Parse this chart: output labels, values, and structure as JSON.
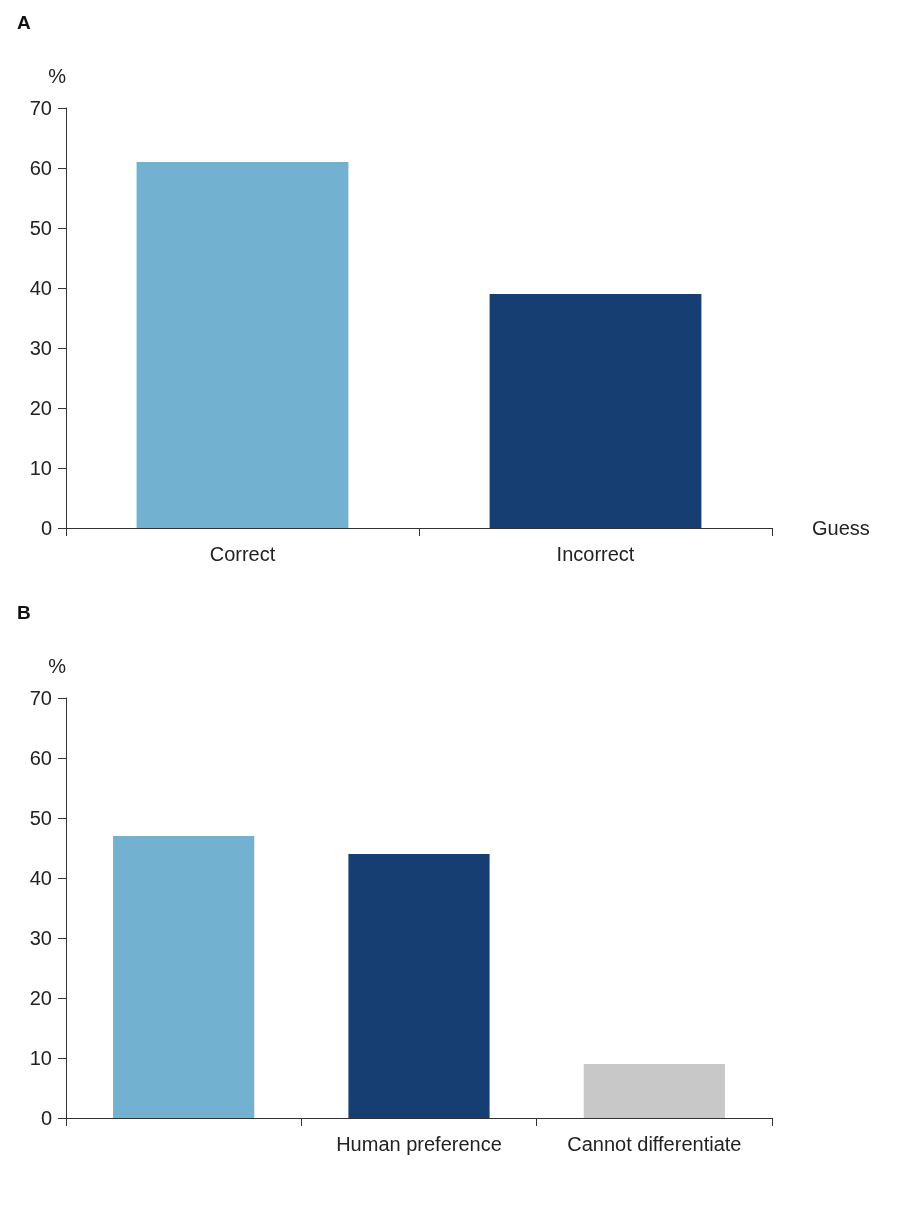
{
  "chart_data": [
    {
      "type": "bar",
      "title": "A",
      "ylabel": "%",
      "xlabel": "Guess",
      "categories": [
        "Correct",
        "Incorrect"
      ],
      "values": [
        61,
        39
      ],
      "colors": [
        "#72b1d0",
        "#173e73"
      ],
      "ylim": [
        0,
        70
      ],
      "yticks": [
        0,
        10,
        20,
        30,
        40,
        50,
        60,
        70
      ]
    },
    {
      "type": "bar",
      "title": "B",
      "ylabel": "%",
      "categories": [
        null,
        "Human preference",
        "Cannot differentiate"
      ],
      "values": [
        47,
        44,
        9
      ],
      "colors": [
        "#72b1d0",
        "#173e73",
        "#c8c8c8"
      ],
      "ylim": [
        0,
        70
      ],
      "yticks": [
        0,
        10,
        20,
        30,
        40,
        50,
        60,
        70
      ]
    }
  ]
}
